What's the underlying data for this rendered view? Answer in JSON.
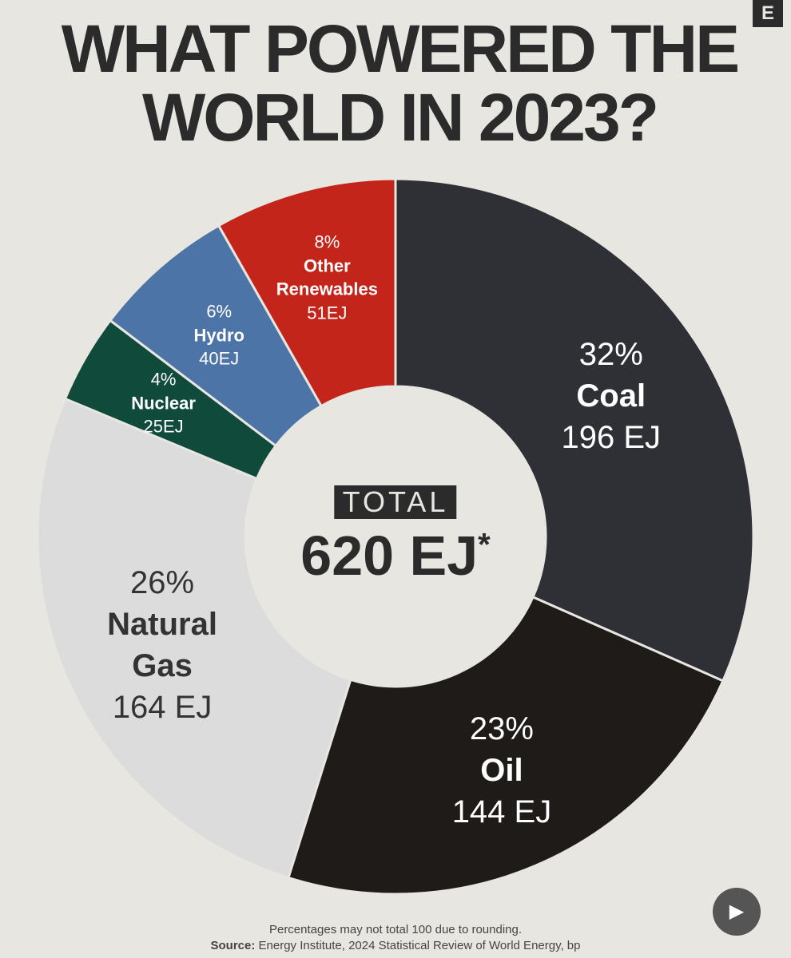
{
  "brand": "E",
  "chart_data": {
    "type": "donut",
    "title": "WHAT POWERED THE WORLD IN 2023?",
    "categories": [
      "Coal",
      "Oil",
      "Natural Gas",
      "Nuclear",
      "Hydro",
      "Other Renewables"
    ],
    "values": [
      196,
      144,
      164,
      25,
      40,
      51
    ],
    "value_labels": [
      "196 EJ",
      "144 EJ",
      "164 EJ",
      "25EJ",
      "40EJ",
      "51EJ"
    ],
    "percent_labels": [
      "32%",
      "23%",
      "26%",
      "4%",
      "6%",
      "8%"
    ],
    "colors": [
      "#2e3035",
      "#1f1b18",
      "#dcdcdc",
      "#0f4a3b",
      "#4d74a6",
      "#c4251b"
    ],
    "label_colors": [
      "#ffffff",
      "#ffffff",
      "#333333",
      "#ffffff",
      "#ffffff",
      "#ffffff"
    ],
    "center_caption": "TOTAL",
    "center_total": "620 EJ",
    "center_mark": "*"
  },
  "footnote": "Percentages may not total 100 due to rounding.",
  "source_label": "Source:",
  "source_text": "Energy Institute, 2024 Statistical Review of World Energy, bp"
}
